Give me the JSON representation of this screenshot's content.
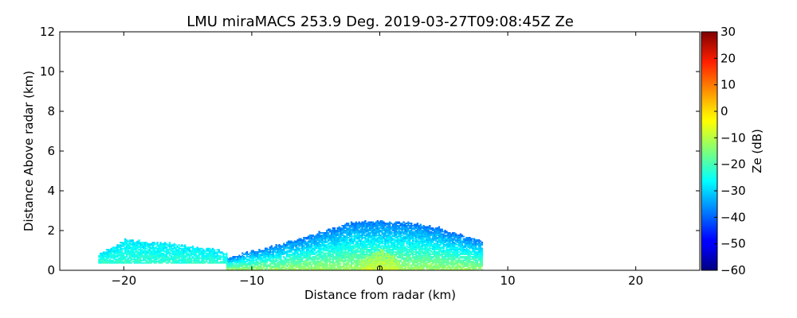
{
  "chart_data": {
    "type": "heatmap",
    "title": "LMU miraMACS 253.9 Deg. 2019-03-27T09:08:45Z  Ze",
    "xlabel": "Distance from radar (km)",
    "ylabel": "Distance Above radar  (km)",
    "xlim": [
      -25,
      25
    ],
    "ylim": [
      0,
      12
    ],
    "x_ticks": [
      -20,
      -10,
      0,
      10,
      20
    ],
    "x_tick_labels": [
      "−20",
      "−10",
      "0",
      "10",
      "20"
    ],
    "y_ticks": [
      0,
      2,
      4,
      6,
      8,
      10,
      12
    ],
    "y_tick_labels": [
      "0",
      "2",
      "4",
      "6",
      "8",
      "10",
      "12"
    ],
    "colorbar": {
      "label": "Ze (dB)",
      "colormap": "jet",
      "range": [
        -60,
        30
      ],
      "ticks": [
        30,
        20,
        10,
        0,
        -10,
        -20,
        -30,
        -40,
        -50,
        -60
      ],
      "tick_labels": [
        "30",
        "20",
        "10",
        "0",
        "−10",
        "−20",
        "−30",
        "−40",
        "−50",
        "−60"
      ]
    },
    "echo_regions": [
      {
        "x_from": -12,
        "x_to": 8,
        "y_base": 0,
        "y_top_profile": [
          [
            -12,
            0.6
          ],
          [
            -6,
            1.6
          ],
          [
            -2,
            2.45
          ],
          [
            2,
            2.4
          ],
          [
            4.5,
            2.1
          ],
          [
            8,
            1.45
          ]
        ],
        "ze_core": -12,
        "ze_edge": -38
      },
      {
        "x_from": -22,
        "x_to": -12,
        "y_base": 0.35,
        "y_top_profile": [
          [
            -22,
            0.8
          ],
          [
            -20,
            1.5
          ],
          [
            -16,
            1.3
          ],
          [
            -12,
            0.9
          ]
        ],
        "ze_core": -22,
        "ze_edge": -28
      },
      {
        "x_from": -1.5,
        "x_to": 1.5,
        "y_base": 0,
        "y_top_profile": [
          [
            -1.5,
            0.5
          ],
          [
            0,
            1.0
          ],
          [
            1.5,
            0.5
          ]
        ],
        "ze_core": -8,
        "ze_edge": -14
      }
    ]
  }
}
